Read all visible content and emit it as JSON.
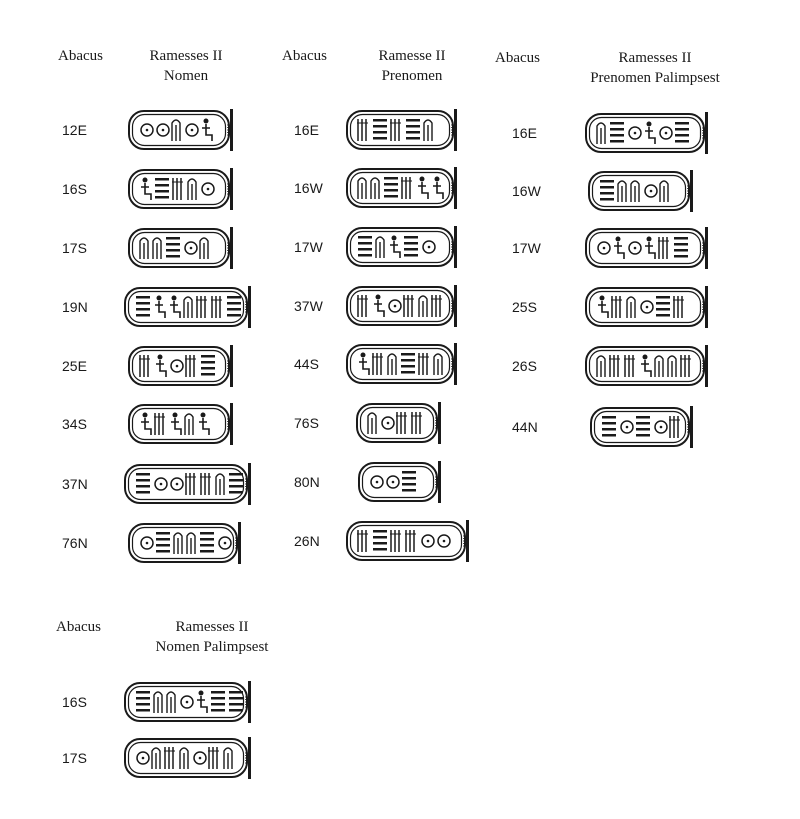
{
  "groups": [
    {
      "abacus_label": "Abacus",
      "title_line1": "Ramesses II",
      "title_line2": "Nomen",
      "rows": [
        "12E",
        "16S",
        "17S",
        "19N",
        "25E",
        "34S",
        "37N",
        "76N"
      ]
    },
    {
      "abacus_label": "Abacus",
      "title_line1": "Ramesse II",
      "title_line2": "Prenomen",
      "rows": [
        "16E",
        "16W",
        "17W",
        "37W",
        "44S",
        "76S",
        "80N",
        "26N"
      ]
    },
    {
      "abacus_label": "Abacus",
      "title_line1": "Ramesses II",
      "title_line2": "Prenomen Palimpsest",
      "rows": [
        "16E",
        "16W",
        "17W",
        "25S",
        "26S",
        "44N"
      ]
    },
    {
      "abacus_label": "Abacus",
      "title_line1": "Ramesses II",
      "title_line2": "Nomen Palimpsest",
      "rows": [
        "16S",
        "17S"
      ]
    }
  ],
  "colors": {
    "ink": "#1a1a1a",
    "background": "#ffffff"
  }
}
